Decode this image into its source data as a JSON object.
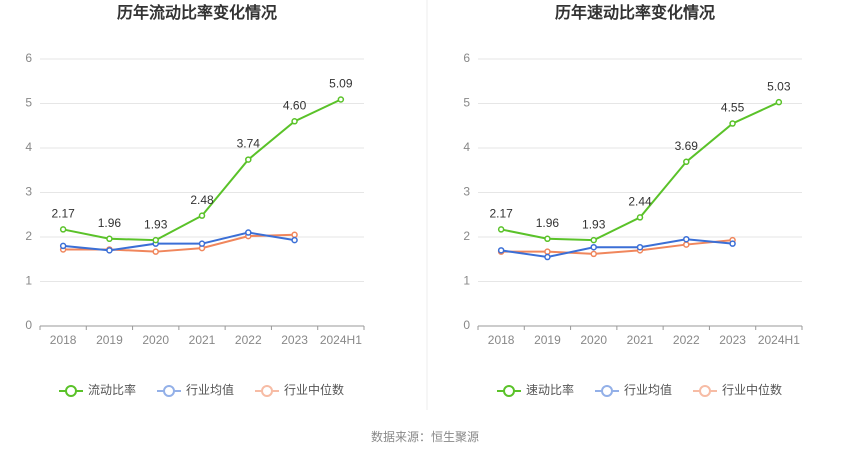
{
  "chart_data": [
    {
      "type": "line",
      "title": "历年流动比率变化情况",
      "categories": [
        "2018",
        "2019",
        "2020",
        "2021",
        "2022",
        "2023",
        "2024H1"
      ],
      "ylim": [
        0,
        6
      ],
      "yticks": [
        0,
        1,
        2,
        3,
        4,
        5,
        6
      ],
      "grid": true,
      "legend": "bottom",
      "series": [
        {
          "name": "流动比率",
          "color": "#5ac229",
          "values": [
            2.17,
            1.96,
            1.93,
            2.48,
            3.74,
            4.6,
            5.09
          ],
          "value_labels": [
            "2.17",
            "1.96",
            "1.93",
            "2.48",
            "3.74",
            "4.60",
            "5.09"
          ]
        },
        {
          "name": "行业均值",
          "color": "#3b6fd6",
          "values": [
            1.8,
            1.7,
            1.85,
            1.85,
            2.1,
            1.93,
            null
          ]
        },
        {
          "name": "行业中位数",
          "color": "#f0865c",
          "values": [
            1.72,
            1.72,
            1.67,
            1.75,
            2.02,
            2.05,
            null
          ]
        }
      ]
    },
    {
      "type": "line",
      "title": "历年速动比率变化情况",
      "categories": [
        "2018",
        "2019",
        "2020",
        "2021",
        "2022",
        "2023",
        "2024H1"
      ],
      "ylim": [
        0,
        6
      ],
      "yticks": [
        0,
        1,
        2,
        3,
        4,
        5,
        6
      ],
      "grid": true,
      "legend": "bottom",
      "series": [
        {
          "name": "速动比率",
          "color": "#5ac229",
          "values": [
            2.17,
            1.96,
            1.93,
            2.44,
            3.69,
            4.55,
            5.03
          ],
          "value_labels": [
            "2.17",
            "1.96",
            "1.93",
            "2.44",
            "3.69",
            "4.55",
            "5.03"
          ]
        },
        {
          "name": "行业均值",
          "color": "#3b6fd6",
          "values": [
            1.7,
            1.55,
            1.77,
            1.77,
            1.95,
            1.85,
            null
          ]
        },
        {
          "name": "行业中位数",
          "color": "#f0865c",
          "values": [
            1.67,
            1.67,
            1.62,
            1.7,
            1.83,
            1.93,
            null
          ]
        }
      ]
    }
  ],
  "source": "数据来源：恒生聚源"
}
